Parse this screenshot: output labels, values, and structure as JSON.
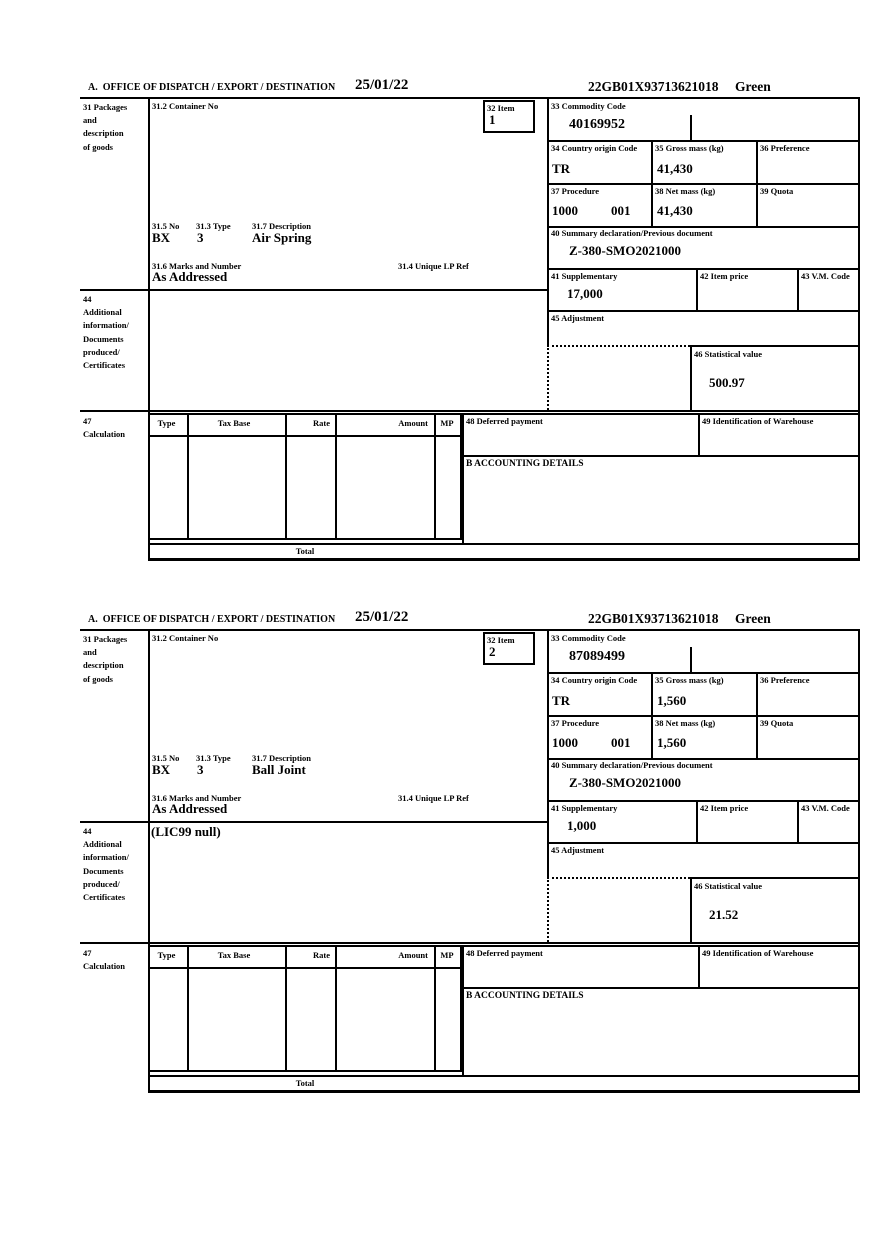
{
  "header": {
    "section_label": "A.  OFFICE OF DISPATCH / EXPORT / DESTINATION",
    "date": "25/01/22",
    "reference": "22GB01X93713621018",
    "routing": "Green"
  },
  "labels": {
    "box31": "31 Packages\nand\ndescription\nof goods",
    "box31_2": "31.2 Container No",
    "box32": "32 Item",
    "box31_5": "31.5 No",
    "box31_3": "31.3 Type",
    "box31_7": "31.7 Description",
    "box31_6": "31.6 Marks and Number",
    "box31_4": "31.4 Unique LP Ref",
    "box33": "33 Commodity Code",
    "box34": "34 Country origin Code",
    "box35": "35 Gross mass (kg)",
    "box36": "36 Preference",
    "box37": "37 Procedure",
    "box38": "38 Net mass (kg)",
    "box39": "39 Quota",
    "box40": "40 Summary declaration/Previous document",
    "box41": "41 Supplementary",
    "box42": "42 Item price",
    "box43": "43 V.M. Code",
    "box44": "44\nAdditional\ninformation/\nDocuments\nproduced/\nCertificates",
    "box45": "45 Adjustment",
    "box46": "46 Statistical value",
    "box47": "47\nCalculation",
    "box48": "48 Deferred payment",
    "box49": "49 Identification of Warehouse",
    "accounting": "B ACCOUNTING DETAILS",
    "total": "Total",
    "table_headers": [
      "Type",
      "Tax Base",
      "Rate",
      "Amount",
      "MP"
    ]
  },
  "forms": [
    {
      "item_number": "1",
      "commodity_code": "40169952",
      "country_origin_code": "TR",
      "gross_mass": "41,430",
      "procedure": "1000",
      "procedure_extension": "001",
      "net_mass": "41,430",
      "previous_document": "Z-380-SMO2021000",
      "supplementary_units": "17,000",
      "statistical_value": "500.97",
      "package_number": "BX",
      "package_type": "3",
      "goods_description": "Air Spring",
      "marks_and_number": "As Addressed",
      "additional_information": ""
    },
    {
      "item_number": "2",
      "commodity_code": "87089499",
      "country_origin_code": "TR",
      "gross_mass": "1,560",
      "procedure": "1000",
      "procedure_extension": "001",
      "net_mass": "1,560",
      "previous_document": "Z-380-SMO2021000",
      "supplementary_units": "1,000",
      "statistical_value": "21.52",
      "package_number": "BX",
      "package_type": "3",
      "goods_description": "Ball Joint",
      "marks_and_number": "As Addressed",
      "additional_information": "(LIC99 null)"
    }
  ]
}
